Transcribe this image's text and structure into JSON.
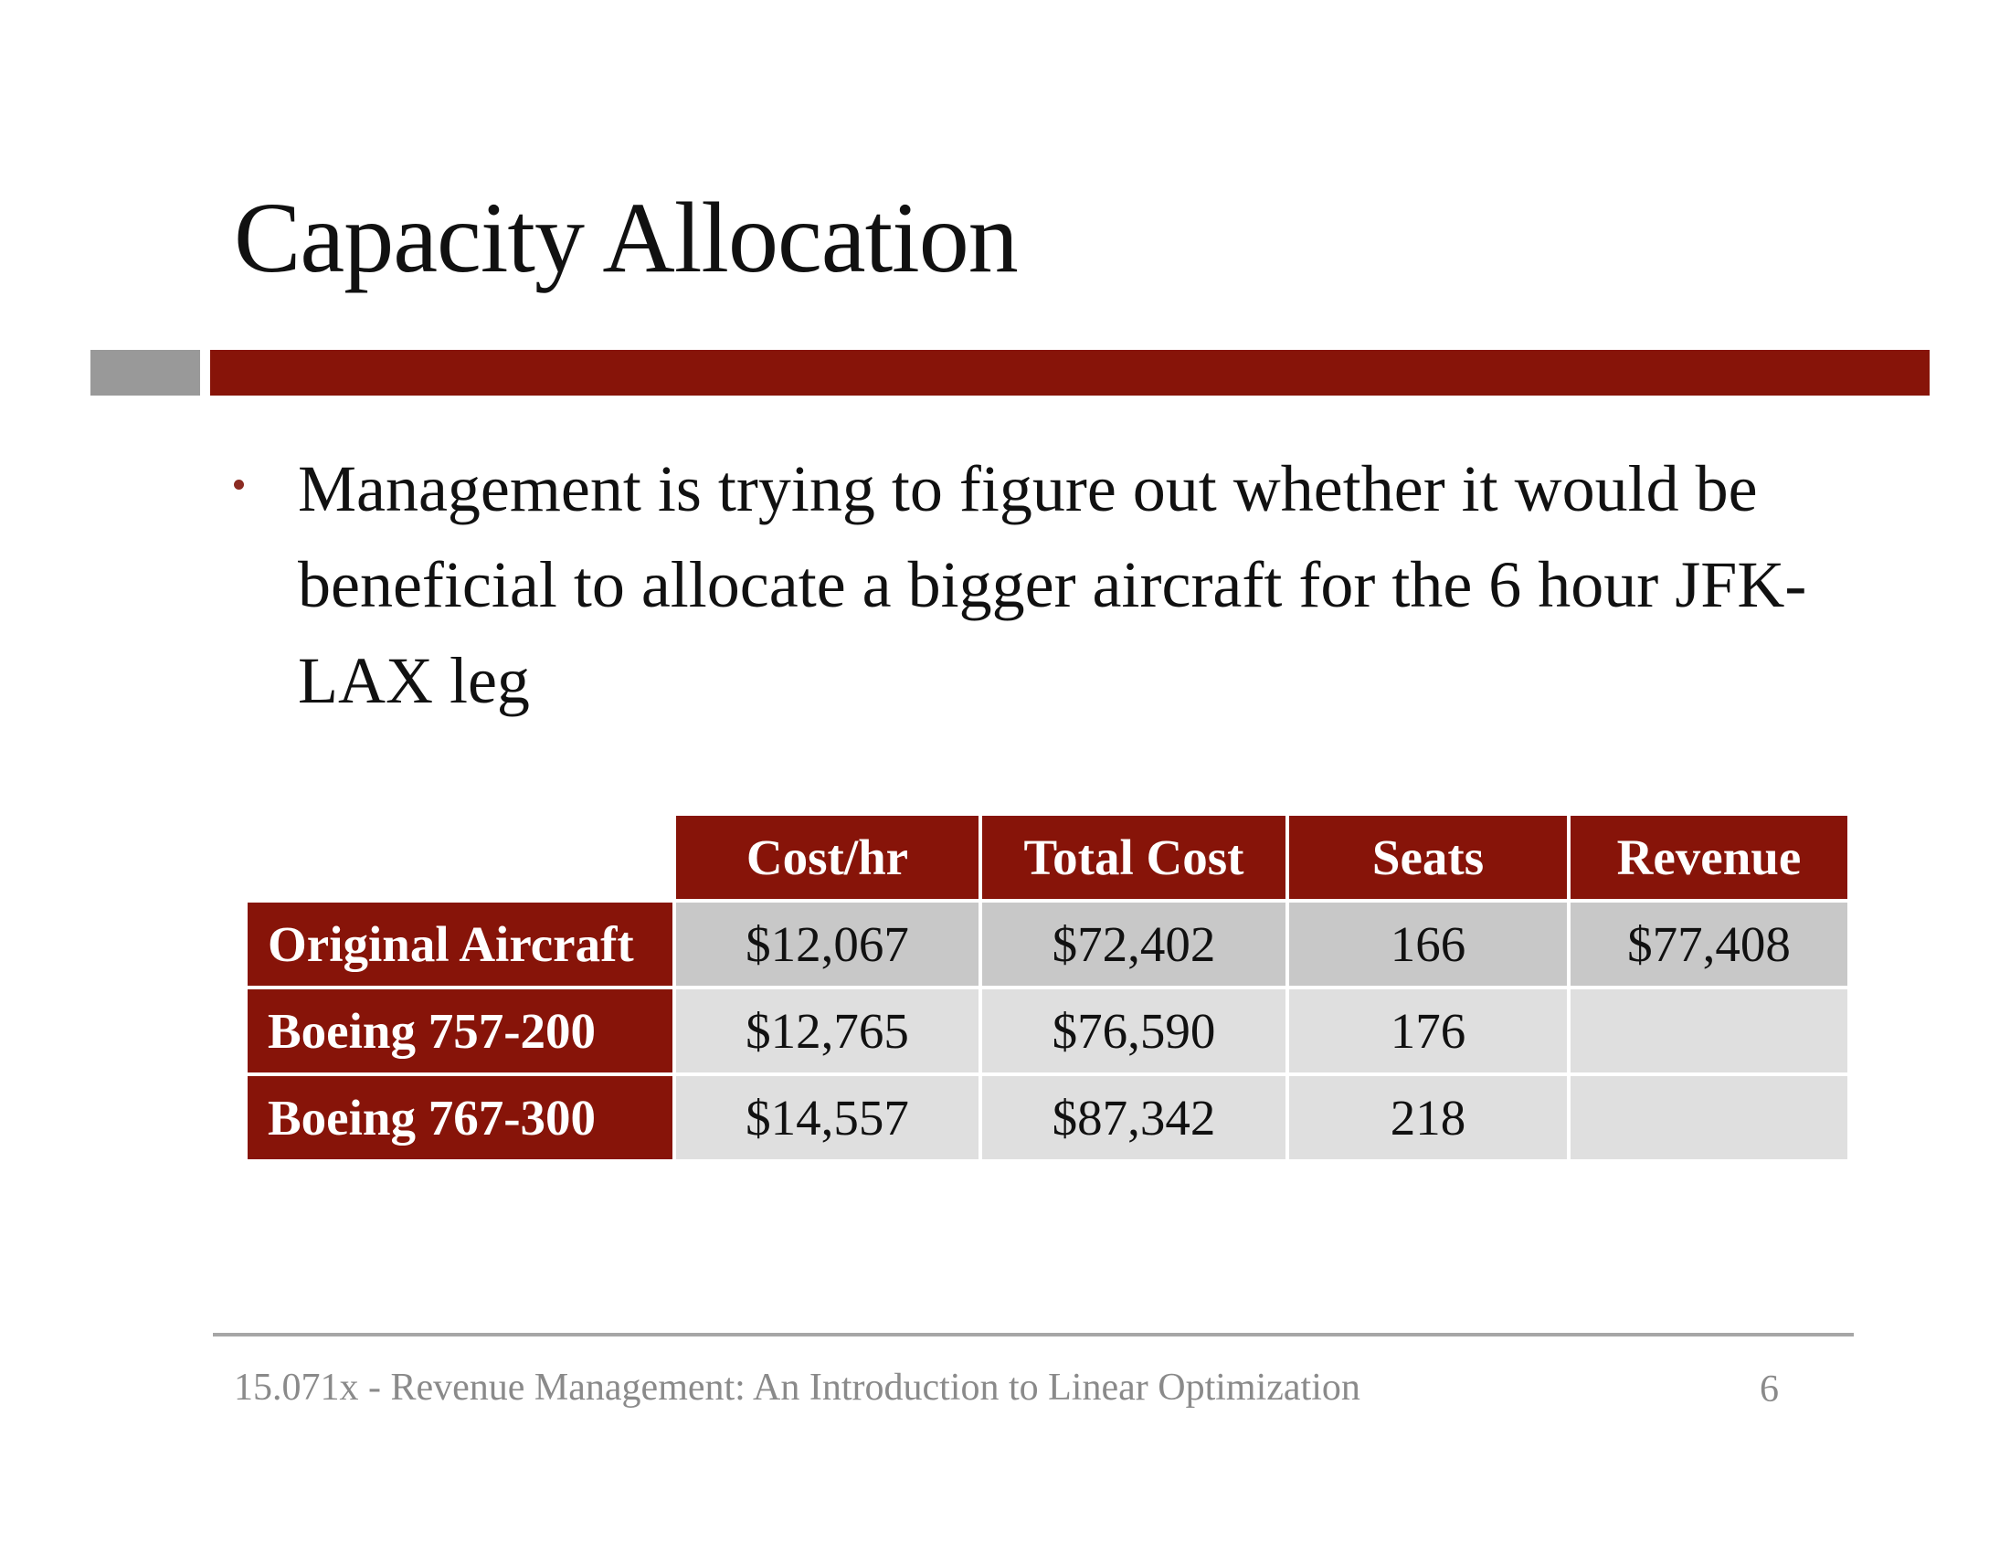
{
  "slide": {
    "title": "Capacity Allocation",
    "bullets": [
      "Management is trying to figure out whether it would be beneficial to allocate a bigger aircraft for the 6 hour JFK-LAX leg"
    ],
    "table": {
      "headers": [
        "Cost/hr",
        "Total Cost",
        "Seats",
        "Revenue"
      ],
      "rows": [
        {
          "label": "Original Aircraft",
          "cells": [
            "$12,067",
            "$72,402",
            "166",
            "$77,408"
          ]
        },
        {
          "label": "Boeing 757-200",
          "cells": [
            "$12,765",
            "$76,590",
            "176",
            ""
          ]
        },
        {
          "label": "Boeing 767-300",
          "cells": [
            "$14,557",
            "$87,342",
            "218",
            ""
          ]
        }
      ]
    },
    "footer": {
      "text": "15.071x - Revenue Management: An Introduction to Linear Optimization",
      "page_number": "6"
    }
  },
  "colors": {
    "accent_red": "#871409",
    "accent_gray": "#999999",
    "row_shade_dark": "#c8c8c8",
    "row_shade_light": "#dfdfdf",
    "footer_gray": "#8a8a8a"
  }
}
